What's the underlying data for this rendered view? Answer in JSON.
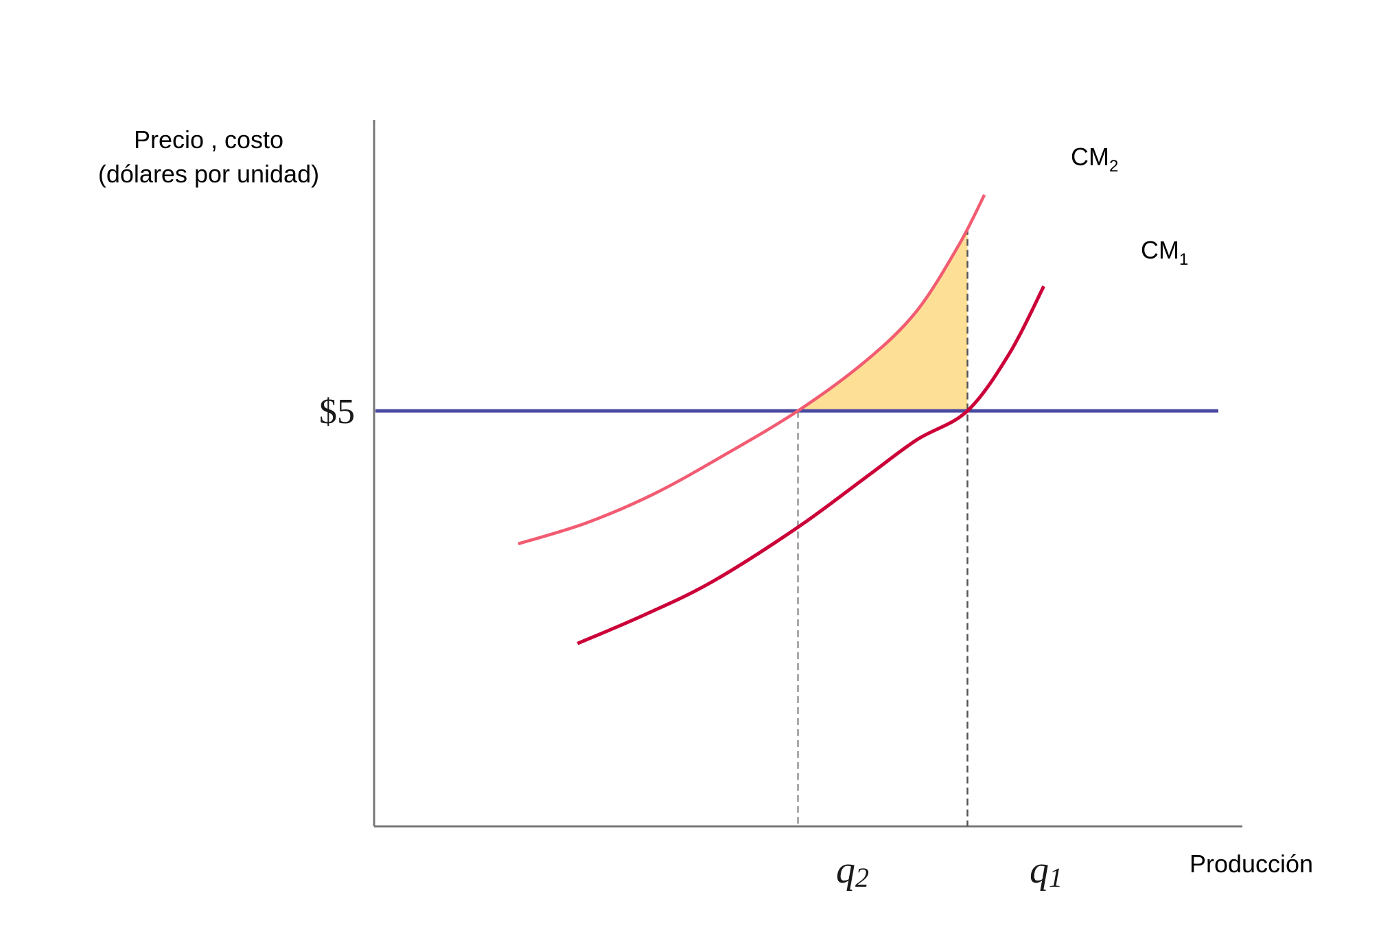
{
  "chart_data": {
    "type": "line",
    "ylabel_lines": [
      "Precio , costo",
      "(dólares por unidad)"
    ],
    "xlabel": "Producción",
    "price_label": "$5",
    "price": 5,
    "quantities": {
      "q2": 0.5,
      "q1": 0.7
    },
    "q_labels": {
      "q2": {
        "base": "q",
        "sub": "2"
      },
      "q1": {
        "base": "q",
        "sub": "1"
      }
    },
    "xlim": [
      0,
      1
    ],
    "ylim": [
      0,
      8.5
    ],
    "series": [
      {
        "name": "CM2",
        "label_base": "CM",
        "label_sub": "2",
        "color": "#f25c72",
        "points": [
          [
            0.17,
            3.4
          ],
          [
            0.25,
            3.65
          ],
          [
            0.33,
            4.0
          ],
          [
            0.41,
            4.45
          ],
          [
            0.5,
            5.0
          ],
          [
            0.58,
            5.6
          ],
          [
            0.64,
            6.2
          ],
          [
            0.69,
            7.0
          ],
          [
            0.72,
            7.6
          ]
        ]
      },
      {
        "name": "CM1",
        "label_base": "CM",
        "label_sub": "1",
        "color": "#cc0038",
        "points": [
          [
            0.24,
            2.2
          ],
          [
            0.32,
            2.55
          ],
          [
            0.4,
            2.95
          ],
          [
            0.5,
            3.6
          ],
          [
            0.58,
            4.2
          ],
          [
            0.64,
            4.65
          ],
          [
            0.7,
            5.0
          ],
          [
            0.75,
            5.7
          ],
          [
            0.79,
            6.5
          ]
        ]
      }
    ],
    "price_line_color": "#4a4aa0",
    "shade_color": "#fedf96"
  }
}
